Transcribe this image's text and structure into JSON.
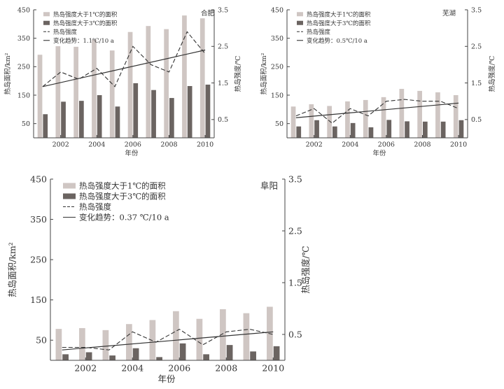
{
  "colors": {
    "bar1": "#cfc6c3",
    "bar3": "#6b6461",
    "line": "#333333",
    "axis": "#444444"
  },
  "chart_data": [
    {
      "type": "bar",
      "title": "合肥",
      "xlabel": "年份",
      "ylabel": "热岛面积/km²",
      "y2label": "热岛强度/℃",
      "years": [
        2001,
        2002,
        2003,
        2004,
        2005,
        2006,
        2007,
        2008,
        2009,
        2010
      ],
      "xticks": [
        "2002",
        "2004",
        "2006",
        "2008",
        "2010"
      ],
      "ylim": [
        0,
        450
      ],
      "yticks": [
        "50",
        "150",
        "250",
        "350",
        "450"
      ],
      "y2lim": [
        0,
        3.5
      ],
      "y2ticks": [
        "0.5",
        "1.5",
        "2.5",
        "3.5"
      ],
      "legend": [
        "热岛强度大于1℃的面积",
        "热岛强度大于3℃的面积",
        "热岛强度",
        "变化趋势：1.1℃/10 a"
      ],
      "series": [
        {
          "name": "热岛强度大于1℃的面积",
          "kind": "bar",
          "axis": "left",
          "values": [
            292,
            322,
            320,
            345,
            307,
            372,
            393,
            382,
            430,
            420
          ]
        },
        {
          "name": "热岛强度大于3℃的面积",
          "kind": "bar",
          "axis": "left",
          "values": [
            83,
            127,
            130,
            150,
            110,
            192,
            168,
            140,
            182,
            187
          ]
        },
        {
          "name": "热岛强度",
          "kind": "line",
          "style": "dashed",
          "axis": "right",
          "values": [
            1.4,
            1.8,
            1.6,
            1.9,
            1.4,
            2.5,
            2.0,
            1.8,
            2.9,
            2.3
          ]
        },
        {
          "name": "变化趋势",
          "kind": "line",
          "style": "solid",
          "axis": "right",
          "values": [
            1.4,
            2.4
          ]
        }
      ]
    },
    {
      "type": "bar",
      "title": "芜湖",
      "xlabel": "年份",
      "ylabel": "热岛面积/km²",
      "y2label": "热岛强度/℃",
      "years": [
        2001,
        2002,
        2003,
        2004,
        2005,
        2006,
        2007,
        2008,
        2009,
        2010
      ],
      "xticks": [
        "2002",
        "2004",
        "2006",
        "2008",
        "2010"
      ],
      "ylim": [
        0,
        450
      ],
      "yticks": [
        "50",
        "150",
        "250",
        "350",
        "450"
      ],
      "y2lim": [
        0,
        3.5
      ],
      "y2ticks": [
        "0.5",
        "1.5",
        "2.5",
        "3.5"
      ],
      "legend": [
        "热岛强度大于1℃的面积",
        "热岛强度大于3℃的面积",
        "热岛强度",
        "变化趋势：0.5℃/10 a"
      ],
      "series": [
        {
          "name": "热岛强度大于1℃的面积",
          "kind": "bar",
          "axis": "left",
          "values": [
            110,
            118,
            112,
            128,
            133,
            143,
            172,
            165,
            160,
            150
          ]
        },
        {
          "name": "热岛强度大于3℃的面积",
          "kind": "bar",
          "axis": "left",
          "values": [
            40,
            62,
            40,
            52,
            37,
            63,
            58,
            57,
            57,
            62
          ]
        },
        {
          "name": "热岛强度",
          "kind": "line",
          "style": "dashed",
          "axis": "right",
          "values": [
            0.6,
            0.8,
            0.4,
            0.8,
            0.6,
            1.0,
            1.05,
            1.0,
            1.0,
            0.8
          ]
        },
        {
          "name": "变化趋势",
          "kind": "line",
          "style": "solid",
          "axis": "right",
          "values": [
            0.55,
            0.95
          ]
        }
      ]
    },
    {
      "type": "bar",
      "title": "阜阳",
      "xlabel": "年份",
      "ylabel": "热岛面积/km²",
      "y2label": "热岛强度/℃",
      "years": [
        2001,
        2002,
        2003,
        2004,
        2005,
        2006,
        2007,
        2008,
        2009,
        2010
      ],
      "xticks": [
        "2002",
        "2004",
        "2006",
        "2008",
        "2010"
      ],
      "ylim": [
        0,
        450
      ],
      "yticks": [
        "50",
        "150",
        "250",
        "350",
        "450"
      ],
      "y2lim": [
        0,
        3.5
      ],
      "y2ticks": [
        "0.5",
        "1.5",
        "2.5",
        "3.5"
      ],
      "legend": [
        "热岛强度大于1℃的面积",
        "热岛强度大于3℃的面积",
        "热岛强度",
        "变化趋势：0.37 ℃/10 a"
      ],
      "series": [
        {
          "name": "热岛强度大于1℃的面积",
          "kind": "bar",
          "axis": "left",
          "values": [
            78,
            80,
            75,
            90,
            100,
            122,
            103,
            127,
            117,
            133
          ]
        },
        {
          "name": "热岛强度大于3℃的面积",
          "kind": "bar",
          "axis": "left",
          "values": [
            15,
            20,
            12,
            30,
            8,
            42,
            15,
            38,
            22,
            35
          ]
        },
        {
          "name": "热岛强度",
          "kind": "line",
          "style": "dashed",
          "axis": "right",
          "values": [
            0.25,
            0.25,
            0.2,
            0.55,
            0.35,
            0.6,
            0.3,
            0.55,
            0.6,
            0.5
          ]
        },
        {
          "name": "变化趋势",
          "kind": "line",
          "style": "solid",
          "axis": "right",
          "values": [
            0.2,
            0.55
          ]
        }
      ]
    }
  ]
}
